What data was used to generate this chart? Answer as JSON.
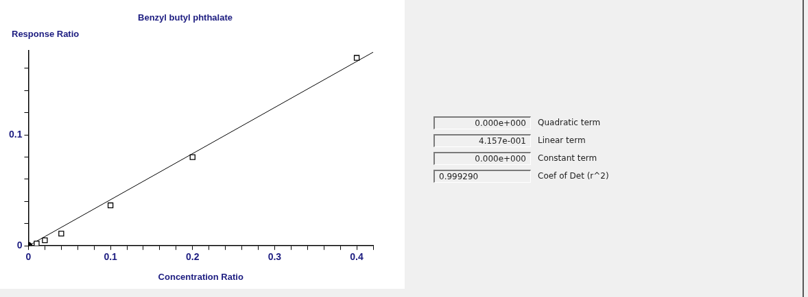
{
  "chart_data": [
    {
      "type": "scatter",
      "title": "Benzyl butyl phthalate",
      "xlabel": "Concentration Ratio",
      "ylabel": "Response Ratio",
      "xlim": [
        0,
        0.42
      ],
      "ylim": [
        0,
        0.176
      ],
      "xticks": [
        0,
        {
          "value": 0.02,
          "label": null
        },
        {
          "value": 0.04,
          "label": null
        },
        {
          "value": 0.06,
          "label": null
        },
        {
          "value": 0.08,
          "label": null
        },
        0.1,
        {
          "value": 0.12,
          "label": null
        },
        {
          "value": 0.14,
          "label": null
        },
        {
          "value": 0.16,
          "label": null
        },
        {
          "value": 0.18,
          "label": null
        },
        0.2,
        {
          "value": 0.22,
          "label": null
        },
        {
          "value": 0.24,
          "label": null
        },
        {
          "value": 0.26,
          "label": null
        },
        {
          "value": 0.28,
          "label": null
        },
        0.3,
        {
          "value": 0.32,
          "label": null
        },
        {
          "value": 0.34,
          "label": null
        },
        {
          "value": 0.36,
          "label": null
        },
        {
          "value": 0.38,
          "label": null
        },
        0.4,
        {
          "value": 0.42,
          "label": null
        }
      ],
      "yticks": [
        0,
        {
          "value": 0.02,
          "label": null
        },
        {
          "value": 0.04,
          "label": null
        },
        {
          "value": 0.06,
          "label": null
        },
        {
          "value": 0.08,
          "label": null
        },
        0.1,
        {
          "value": 0.12,
          "label": null
        },
        {
          "value": 0.14,
          "label": null
        },
        {
          "value": 0.16,
          "label": null
        }
      ],
      "grid": false,
      "legend": false,
      "series": [
        {
          "type": "line",
          "color": "#000000",
          "marker": "none",
          "x": [
            0,
            0.42
          ],
          "values": [
            0,
            0.1746
          ]
        },
        {
          "type": "scatter",
          "color": "#000000",
          "marker": "square",
          "x": [
            0.01,
            0.02,
            0.04,
            0.1,
            0.2,
            0.4
          ],
          "values": [
            0.002,
            0.005,
            0.011,
            0.0365,
            0.08,
            0.1695
          ]
        },
        {
          "type": "scatter",
          "color": "#000000",
          "marker": "circle",
          "x": [
            0
          ],
          "values": [
            0
          ]
        }
      ]
    },
    {
      "type": "other",
      "annotations": [
        "0.000e+000",
        "Quadratic term",
        "4.157e-001",
        "Linear term",
        "0.000e+000",
        "Constant term",
        "0.999290",
        "Coef of Det (r^2)"
      ]
    }
  ]
}
